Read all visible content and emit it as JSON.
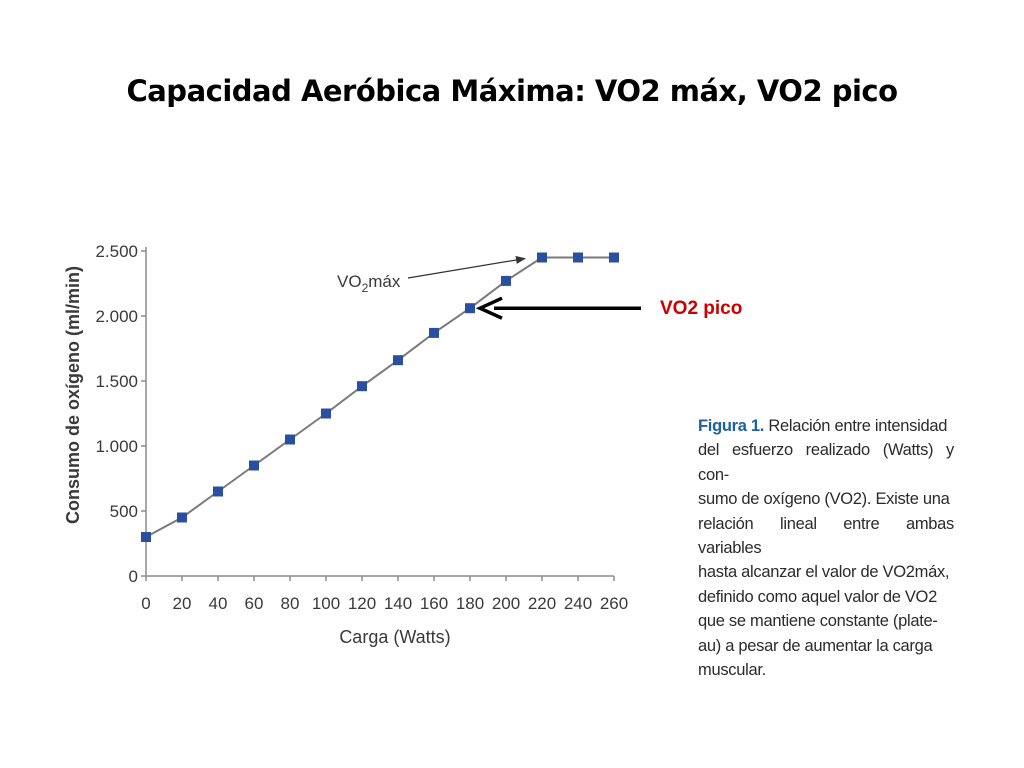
{
  "slide": {
    "title": "Capacidad Aeróbica Máxima: VO2 máx, VO2 pico"
  },
  "chart_data": {
    "type": "line",
    "xlabel": "Carga (Watts)",
    "ylabel": "Consumo de oxígeno (ml/min)",
    "xlim": [
      0,
      260
    ],
    "ylim": [
      0,
      2500
    ],
    "x_ticks": [
      "0",
      "20",
      "40",
      "60",
      "80",
      "100",
      "120",
      "140",
      "160",
      "180",
      "200",
      "220",
      "240",
      "260"
    ],
    "y_ticks": [
      {
        "value": 0,
        "label": "0"
      },
      {
        "value": 500,
        "label": "500"
      },
      {
        "value": 1000,
        "label": "1.000"
      },
      {
        "value": 1500,
        "label": "1.500"
      },
      {
        "value": 2000,
        "label": "2.000"
      },
      {
        "value": 2500,
        "label": "2.500"
      }
    ],
    "grid": false,
    "series": [
      {
        "color": "#2a4fa0",
        "points": [
          {
            "x": 0,
            "y": 300
          },
          {
            "x": 20,
            "y": 450
          },
          {
            "x": 40,
            "y": 650
          },
          {
            "x": 60,
            "y": 850
          },
          {
            "x": 80,
            "y": 1050
          },
          {
            "x": 100,
            "y": 1250
          },
          {
            "x": 120,
            "y": 1460
          },
          {
            "x": 140,
            "y": 1660
          },
          {
            "x": 160,
            "y": 1870
          },
          {
            "x": 180,
            "y": 2060
          },
          {
            "x": 200,
            "y": 2270
          },
          {
            "x": 220,
            "y": 2450
          },
          {
            "x": 240,
            "y": 2450
          },
          {
            "x": 260,
            "y": 2450
          }
        ]
      }
    ],
    "annotations": [
      {
        "name": "vo2max",
        "text_main": "VO",
        "text_sub": "2",
        "text_tail": "máx",
        "target": {
          "x": 215,
          "y": 2450
        }
      },
      {
        "name": "vo2pico",
        "text": "VO2 pico",
        "color": "#cc0000",
        "target": {
          "x": 180,
          "y": 2060
        }
      }
    ]
  },
  "caption": {
    "figure_label": "Figura 1.",
    "lines": [
      "Relación entre intensidad",
      "del esfuerzo realizado (Watts) y con-",
      "sumo de oxígeno (VO2). Existe una",
      "relación lineal entre ambas variables",
      "hasta alcanzar el valor de VO2máx,",
      "definido como aquel valor de VO2",
      "que se mantiene constante (plate-",
      "au) a pesar de aumentar la carga",
      "muscular."
    ]
  }
}
